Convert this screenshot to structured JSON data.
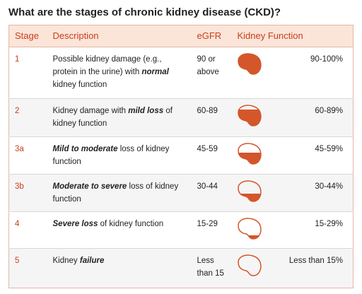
{
  "title": "What are the stages of chronic kidney disease (CKD)?",
  "table": {
    "header": [
      "Stage",
      "Description",
      "eGFR",
      "Kidney Function"
    ],
    "rows": [
      {
        "stage": "1",
        "description": [
          "Possible kidney damage (e.g., protein in the urine) with ",
          "normal",
          " kidney function"
        ],
        "egfr": "90 or above",
        "function": "90-100%"
      },
      {
        "stage": "2",
        "description": [
          "Kidney damage with ",
          "mild loss",
          " of kidney function"
        ],
        "egfr": "60-89",
        "function": "60-89%"
      },
      {
        "stage": "3a",
        "description": [
          "Mild to moderate",
          " loss of kidney function"
        ],
        "egfr": "45-59",
        "function": "45-59%"
      },
      {
        "stage": "3b",
        "description": [
          "Moderate to severe",
          " loss of kidney function"
        ],
        "egfr": "30-44",
        "function": "30-44%"
      },
      {
        "stage": "4",
        "description": [
          "Severe loss",
          " of kidney function"
        ],
        "egfr": "15-29",
        "function": "15-29%"
      },
      {
        "stage": "5",
        "description": [
          "Kidney ",
          "failure"
        ],
        "egfr": "Less than 15",
        "function": "Less than 15%"
      }
    ]
  }
}
